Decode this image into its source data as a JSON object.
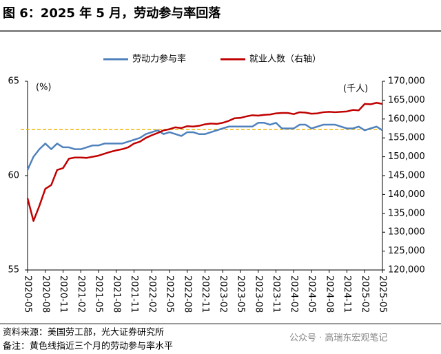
{
  "chart_data": {
    "type": "line",
    "title": "图 6：2025 年 5 月，劳动参与率回落",
    "y_unit": "(%)",
    "y2_unit": "(千人)",
    "source": "资料来源：美国劳工部，光大证券研究所",
    "note": "备注：黄色线指近三个月的劳动参与率水平",
    "watermark": "公众号 · 高瑞东宏观笔记",
    "categories": [
      "2020-05",
      null,
      null,
      "2020-08",
      null,
      null,
      "2020-11",
      null,
      null,
      "2021-02",
      null,
      null,
      "2021-05",
      null,
      null,
      "2021-08",
      null,
      null,
      "2021-11",
      null,
      null,
      "2022-02",
      null,
      null,
      "2022-05",
      null,
      null,
      "2022-08",
      null,
      null,
      "2022-11",
      null,
      null,
      "2023-02",
      null,
      null,
      "2023-05",
      null,
      null,
      "2023-08",
      null,
      null,
      "2023-11",
      null,
      null,
      "2024-02",
      null,
      null,
      "2024-05",
      null,
      null,
      "2024-08",
      null,
      null,
      "2024-11",
      null,
      null,
      "2025-02",
      null,
      null,
      "2025-05"
    ],
    "series": [
      {
        "name": "劳动力参与率",
        "color": "#4f81bd",
        "axis": "y",
        "values": [
          60.3,
          61.0,
          61.4,
          61.7,
          61.4,
          61.7,
          61.5,
          61.5,
          61.4,
          61.4,
          61.5,
          61.6,
          61.6,
          61.7,
          61.7,
          61.7,
          61.7,
          61.8,
          61.9,
          62.0,
          62.2,
          62.3,
          62.4,
          62.2,
          62.3,
          62.2,
          62.1,
          62.3,
          62.3,
          62.2,
          62.2,
          62.3,
          62.4,
          62.5,
          62.6,
          62.6,
          62.6,
          62.6,
          62.6,
          62.8,
          62.8,
          62.7,
          62.8,
          62.5,
          62.5,
          62.5,
          62.7,
          62.7,
          62.5,
          62.6,
          62.7,
          62.7,
          62.7,
          62.6,
          62.5,
          62.5,
          62.6,
          62.4,
          62.5,
          62.6,
          62.4
        ]
      },
      {
        "name": "就业人数（右轴）",
        "color": "#c00000",
        "axis": "y2",
        "values": [
          139000,
          133000,
          137000,
          141500,
          142500,
          146500,
          147000,
          149500,
          149800,
          149800,
          149700,
          150000,
          150300,
          150800,
          151300,
          151700,
          152000,
          152500,
          153500,
          154000,
          155000,
          155700,
          156300,
          157000,
          157300,
          157800,
          157600,
          158100,
          158000,
          158200,
          158600,
          158800,
          158700,
          159000,
          159500,
          160200,
          160300,
          160700,
          161000,
          160900,
          161100,
          161200,
          161500,
          161600,
          161600,
          161300,
          161800,
          161700,
          161400,
          161500,
          161800,
          161900,
          161800,
          161900,
          162000,
          162400,
          162300,
          164000,
          163900,
          164300,
          164000
        ]
      }
    ],
    "reference_line": {
      "value": 62.45,
      "color": "#f0b400",
      "axis": "y"
    },
    "ylim": [
      55,
      65
    ],
    "yticks": [
      55,
      60,
      65
    ],
    "y2lim": [
      120000,
      170000
    ],
    "y2ticks": [
      {
        "value": 120000,
        "label": "120,000"
      },
      {
        "value": 125000,
        "label": "125,000"
      },
      {
        "value": 130000,
        "label": "130,000"
      },
      {
        "value": 135000,
        "label": "135,000"
      },
      {
        "value": 140000,
        "label": "140,000"
      },
      {
        "value": 145000,
        "label": "145,000"
      },
      {
        "value": 150000,
        "label": "150,000"
      },
      {
        "value": 155000,
        "label": "155,000"
      },
      {
        "value": 160000,
        "label": "160,000"
      },
      {
        "value": 165000,
        "label": "165,000"
      },
      {
        "value": 170000,
        "label": "170,000"
      }
    ],
    "legend": "top"
  }
}
